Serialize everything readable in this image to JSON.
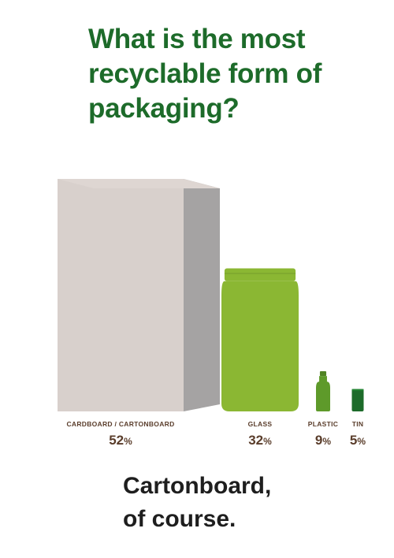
{
  "title": "What is the most recyclable form of packaging?",
  "chart_data": {
    "type": "bar",
    "categories": [
      "CARDBOARD / CARTONBOARD",
      "GLASS",
      "PLASTIC",
      "TIN"
    ],
    "values": [
      52,
      32,
      9,
      5
    ],
    "value_labels": [
      "52",
      "32",
      "9",
      "5"
    ],
    "unit": "%",
    "series": [
      {
        "values": [
          52,
          32,
          9,
          5
        ]
      }
    ],
    "colors": [
      "#d8d0cc",
      "#8bb733",
      "#5e9a2a",
      "#1d6b2a"
    ],
    "icons": [
      "carton-box-icon",
      "glass-jar-icon",
      "plastic-bottle-icon",
      "tin-can-icon"
    ],
    "grid": false,
    "legend": "none"
  },
  "tagline": {
    "line1": "Cartonboard,",
    "line2": "of course."
  }
}
